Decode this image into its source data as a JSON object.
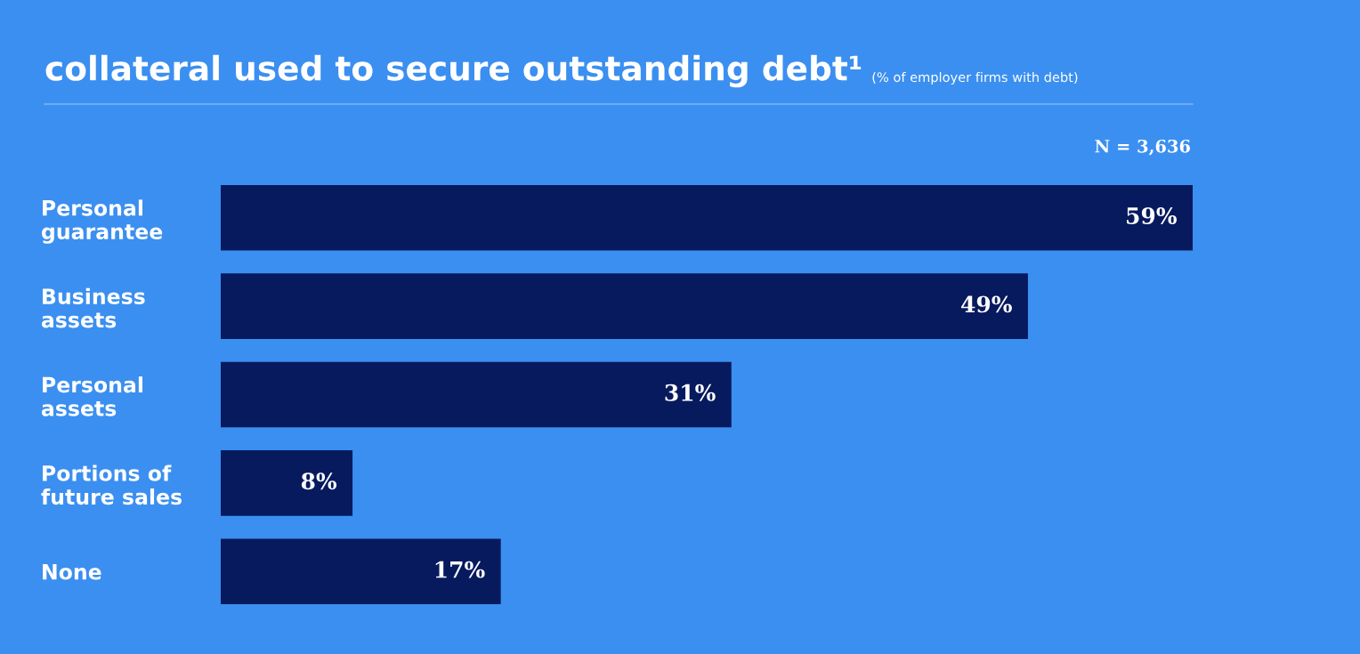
{
  "chart_data": {
    "type": "bar",
    "orientation": "horizontal",
    "title": "collateral used to secure outstanding debt¹",
    "subtitle": "(% of employer firms with debt)",
    "categories": [
      "Personal\nguarantee",
      "Business\nassets",
      "Personal\nassets",
      "Portions of\nfuture sales",
      "None"
    ],
    "values": [
      59,
      49,
      31,
      8,
      17
    ],
    "value_labels": [
      "59%",
      "49%",
      "31%",
      "8%",
      "17%"
    ],
    "color": "#071a5e",
    "annotations": [
      "N = 3,636"
    ],
    "grid": false,
    "legend": false
  }
}
